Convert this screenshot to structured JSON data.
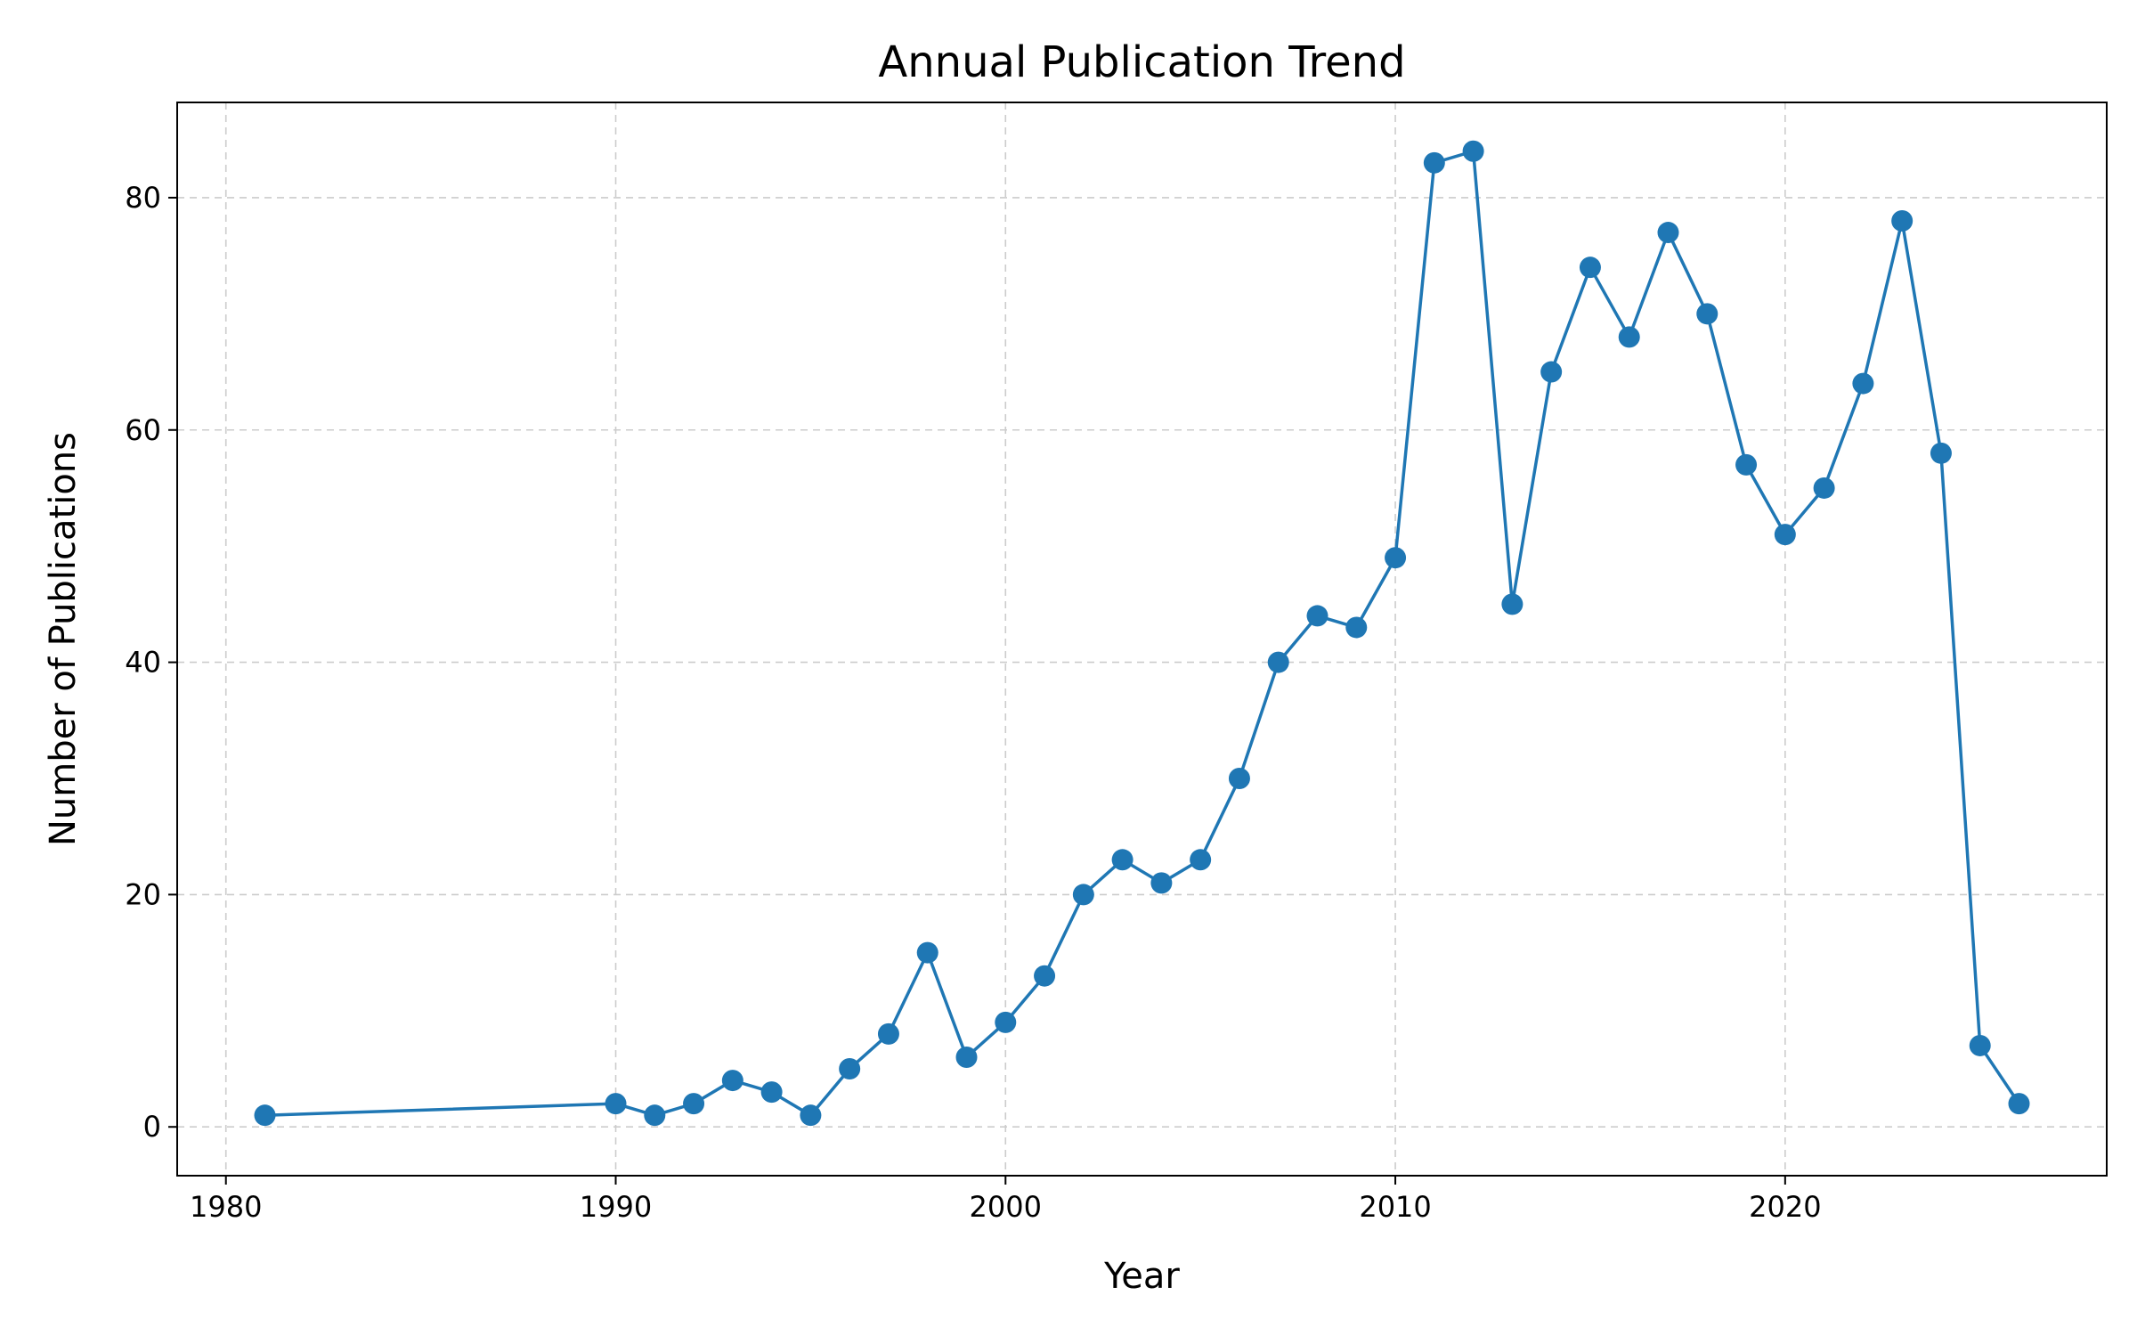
{
  "chart_data": {
    "type": "line",
    "title": "Annual Publication Trend",
    "xlabel": "Year",
    "ylabel": "Number of Publications",
    "xlim": [
      1978.75,
      2028.25
    ],
    "ylim": [
      -4.2,
      88.2
    ],
    "xticks": [
      1980,
      1990,
      2000,
      2010,
      2020
    ],
    "yticks": [
      0,
      20,
      40,
      60,
      80
    ],
    "xtick_labels": [
      "1980",
      "1990",
      "2000",
      "2010",
      "2020"
    ],
    "ytick_labels": [
      "0",
      "20",
      "40",
      "60",
      "80"
    ],
    "grid": true,
    "legend": false,
    "series": [
      {
        "color": "#1f77b4",
        "marker": "circle",
        "x": [
          1981,
          1990,
          1991,
          1992,
          1993,
          1994,
          1995,
          1996,
          1997,
          1998,
          1999,
          2000,
          2001,
          2002,
          2003,
          2004,
          2005,
          2006,
          2007,
          2008,
          2009,
          2010,
          2011,
          2012,
          2013,
          2014,
          2015,
          2016,
          2017,
          2018,
          2019,
          2020,
          2021,
          2022,
          2023,
          2024,
          2025,
          2026
        ],
        "y": [
          1,
          2,
          1,
          2,
          4,
          3,
          1,
          5,
          8,
          15,
          6,
          9,
          13,
          20,
          23,
          21,
          23,
          30,
          40,
          44,
          43,
          49,
          83,
          84,
          45,
          65,
          74,
          68,
          77,
          70,
          57,
          51,
          55,
          64,
          78,
          58,
          7,
          2
        ]
      }
    ]
  }
}
